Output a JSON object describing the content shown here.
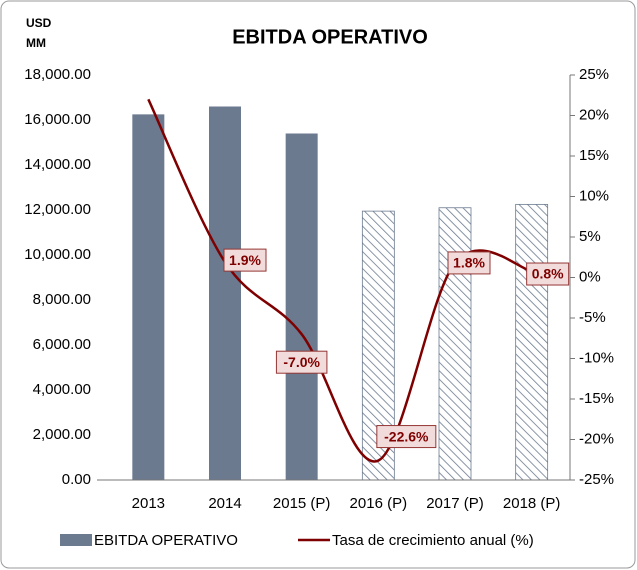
{
  "chart_data": {
    "type": "bar-line",
    "title": "EBITDA OPERATIVO",
    "ylabel": [
      "USD",
      "MM"
    ],
    "categories": [
      "2013",
      "2014",
      "2015 (P)",
      "2016 (P)",
      "2017 (P)",
      "2018 (P)"
    ],
    "series": [
      {
        "name": "EBITDA OPERATIVO",
        "type": "bar",
        "color": "#6b7a8f",
        "hatch": [
          false,
          false,
          false,
          true,
          true,
          true
        ],
        "values": [
          16250,
          16600,
          15400,
          11950,
          12100,
          12250
        ]
      },
      {
        "name": "Tasa de crecimiento anual (%)",
        "type": "line",
        "axis": "y2",
        "color": "#7f0000",
        "values": [
          22,
          1.9,
          -7.0,
          -22.6,
          1.8,
          0.8
        ],
        "value_labels": [
          null,
          "1.9%",
          "-7.0%",
          "-22.6%",
          "1.8%",
          "0.8%"
        ]
      }
    ],
    "ylim": [
      0,
      18000
    ],
    "yticks": [
      {
        "value": 0,
        "label": "0.00"
      },
      {
        "value": 2000,
        "label": "2,000.00"
      },
      {
        "value": 4000,
        "label": "4,000.00"
      },
      {
        "value": 6000,
        "label": "6,000.00"
      },
      {
        "value": 8000,
        "label": "8,000.00"
      },
      {
        "value": 10000,
        "label": "10,000.00"
      },
      {
        "value": 12000,
        "label": "12,000.00"
      },
      {
        "value": 14000,
        "label": "14,000.00"
      },
      {
        "value": 16000,
        "label": "16,000.00"
      },
      {
        "value": 18000,
        "label": "18,000.00"
      }
    ],
    "y2lim": [
      -25,
      25
    ],
    "y2ticks": [
      {
        "value": -25,
        "label": "-25%"
      },
      {
        "value": -20,
        "label": "-20%"
      },
      {
        "value": -15,
        "label": "-15%"
      },
      {
        "value": -10,
        "label": "-10%"
      },
      {
        "value": -5,
        "label": "-5%"
      },
      {
        "value": 0,
        "label": "0%"
      },
      {
        "value": 5,
        "label": "5%"
      },
      {
        "value": 10,
        "label": "10%"
      },
      {
        "value": 15,
        "label": "15%"
      },
      {
        "value": 20,
        "label": "20%"
      },
      {
        "value": 25,
        "label": "25%"
      }
    ],
    "grid": false,
    "legend": "bottom"
  }
}
